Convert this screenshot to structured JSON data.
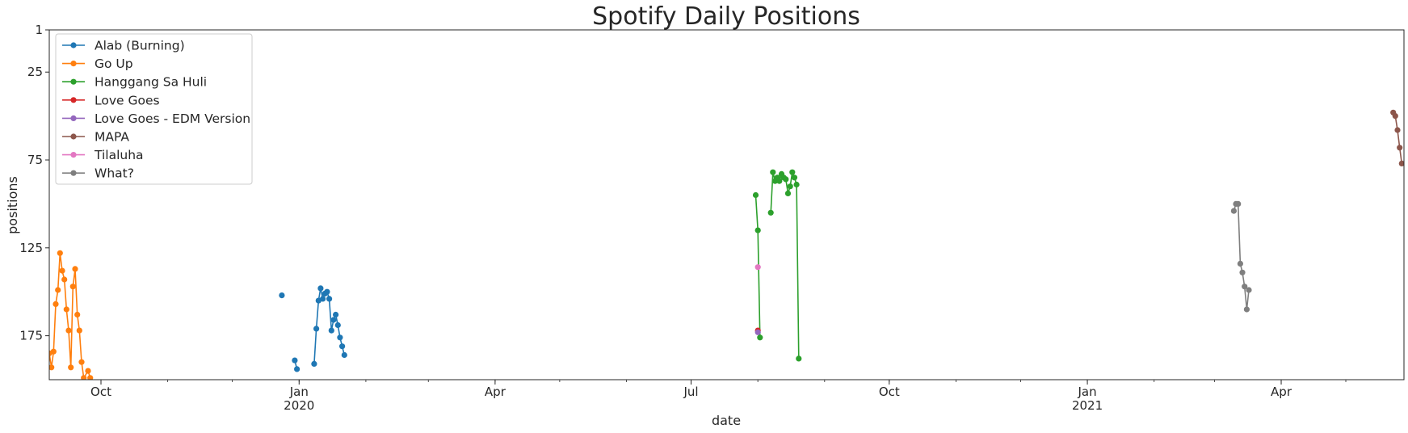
{
  "chart_data": {
    "type": "line",
    "title": "Spotify Daily Positions",
    "xlabel": "date",
    "ylabel": "positions",
    "y_inverted": true,
    "ylim": [
      1,
      200
    ],
    "xlim": [
      "2019-09-07",
      "2021-05-28"
    ],
    "grid": false,
    "legend_position": "top-left",
    "y_ticks": [
      1,
      25,
      75,
      125,
      175
    ],
    "x_ticks": [
      {
        "date": "2019-10-01",
        "label": "Oct",
        "year": ""
      },
      {
        "date": "2020-01-01",
        "label": "Jan",
        "year": "2020"
      },
      {
        "date": "2020-04-01",
        "label": "Apr",
        "year": ""
      },
      {
        "date": "2020-07-01",
        "label": "Jul",
        "year": ""
      },
      {
        "date": "2020-10-01",
        "label": "Oct",
        "year": ""
      },
      {
        "date": "2021-01-01",
        "label": "Jan",
        "year": "2021"
      },
      {
        "date": "2021-04-01",
        "label": "Apr",
        "year": ""
      }
    ],
    "series": [
      {
        "name": "Alab (Burning)",
        "color": "#1f77b4",
        "points": [
          [
            "2019-12-24",
            152
          ],
          [
            "2019-12-30",
            189
          ],
          [
            "2019-12-31",
            194
          ],
          [
            "2020-01-08",
            191
          ],
          [
            "2020-01-09",
            171
          ],
          [
            "2020-01-10",
            155
          ],
          [
            "2020-01-11",
            148
          ],
          [
            "2020-01-12",
            154
          ],
          [
            "2020-01-13",
            151
          ],
          [
            "2020-01-14",
            150
          ],
          [
            "2020-01-15",
            154
          ],
          [
            "2020-01-16",
            172
          ],
          [
            "2020-01-17",
            166
          ],
          [
            "2020-01-18",
            163
          ],
          [
            "2020-01-19",
            169
          ],
          [
            "2020-01-20",
            176
          ],
          [
            "2020-01-21",
            181
          ],
          [
            "2020-01-22",
            186
          ]
        ]
      },
      {
        "name": "Go Up",
        "color": "#ff7f0e",
        "points": [
          [
            "2019-09-07",
            185
          ],
          [
            "2019-09-08",
            193
          ],
          [
            "2019-09-09",
            184
          ],
          [
            "2019-09-10",
            157
          ],
          [
            "2019-09-11",
            149
          ],
          [
            "2019-09-12",
            128
          ],
          [
            "2019-09-13",
            138
          ],
          [
            "2019-09-14",
            143
          ],
          [
            "2019-09-15",
            160
          ],
          [
            "2019-09-16",
            172
          ],
          [
            "2019-09-17",
            193
          ],
          [
            "2019-09-18",
            147
          ],
          [
            "2019-09-19",
            137
          ],
          [
            "2019-09-20",
            163
          ],
          [
            "2019-09-21",
            172
          ],
          [
            "2019-09-22",
            190
          ],
          [
            "2019-09-23",
            199
          ],
          [
            "2019-09-25",
            195
          ],
          [
            "2019-09-26",
            199
          ]
        ]
      },
      {
        "name": "Hanggang Sa Huli",
        "color": "#2ca02c",
        "points": [
          [
            "2020-07-31",
            95
          ],
          [
            "2020-08-01",
            115
          ],
          [
            "2020-08-02",
            176
          ],
          [
            "2020-08-07",
            105
          ],
          [
            "2020-08-08",
            82
          ],
          [
            "2020-08-09",
            87
          ],
          [
            "2020-08-10",
            85
          ],
          [
            "2020-08-11",
            87
          ],
          [
            "2020-08-12",
            83
          ],
          [
            "2020-08-13",
            85
          ],
          [
            "2020-08-14",
            86
          ],
          [
            "2020-08-15",
            94
          ],
          [
            "2020-08-16",
            90
          ],
          [
            "2020-08-17",
            82
          ],
          [
            "2020-08-18",
            85
          ],
          [
            "2020-08-19",
            89
          ],
          [
            "2020-08-20",
            188
          ]
        ]
      },
      {
        "name": "Love Goes",
        "color": "#d62728",
        "points": [
          [
            "2020-08-01",
            172
          ]
        ]
      },
      {
        "name": "Love Goes - EDM Version",
        "color": "#9467bd",
        "points": [
          [
            "2020-08-01",
            173
          ]
        ]
      },
      {
        "name": "MAPA",
        "color": "#8c564b",
        "points": [
          [
            "2021-05-23",
            48
          ],
          [
            "2021-05-24",
            50
          ],
          [
            "2021-05-25",
            58
          ],
          [
            "2021-05-26",
            68
          ],
          [
            "2021-05-27",
            77
          ]
        ]
      },
      {
        "name": "Tilaluha",
        "color": "#e377c2",
        "points": [
          [
            "2020-08-01",
            136
          ]
        ]
      },
      {
        "name": "What?",
        "color": "#7f7f7f",
        "points": [
          [
            "2021-03-10",
            104
          ],
          [
            "2021-03-11",
            100
          ],
          [
            "2021-03-12",
            100
          ],
          [
            "2021-03-13",
            134
          ],
          [
            "2021-03-14",
            139
          ],
          [
            "2021-03-15",
            147
          ],
          [
            "2021-03-16",
            160
          ],
          [
            "2021-03-17",
            149
          ]
        ]
      }
    ]
  }
}
